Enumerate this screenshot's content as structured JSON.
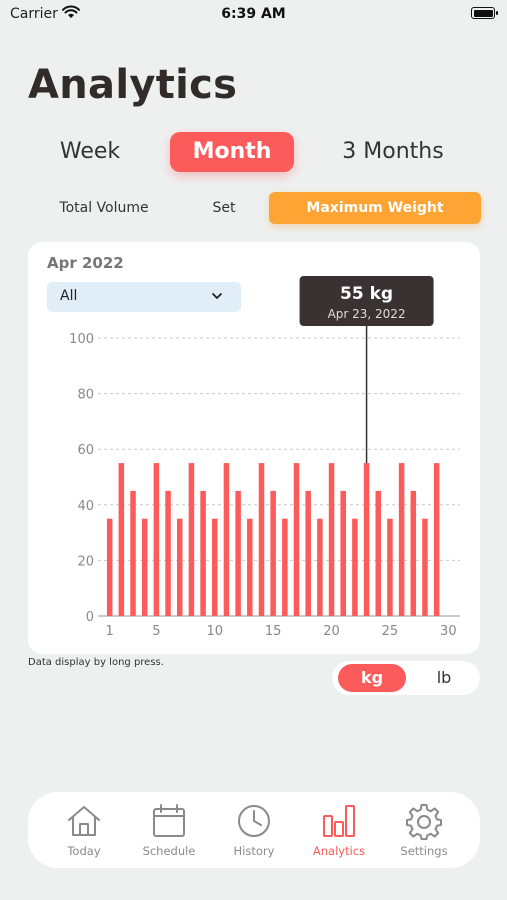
{
  "status_bar": {
    "carrier": "Carrier",
    "time": "6:39 AM"
  },
  "page": {
    "title": "Analytics"
  },
  "period_tabs": {
    "week": "Week",
    "month": "Month",
    "three_months": "3 Months",
    "selected": "Month"
  },
  "metric_tabs": {
    "total_volume": "Total Volume",
    "set": "Set",
    "maximum_weight": "Maximum Weight",
    "selected": "Maximum Weight"
  },
  "card": {
    "month_label": "Apr 2022",
    "filter": {
      "value": "All"
    }
  },
  "tooltip": {
    "value": "55 kg",
    "date": "Apr 23, 2022",
    "day": 23
  },
  "chart_data": {
    "type": "bar",
    "title": "",
    "xlabel": "",
    "ylabel": "",
    "ylim": [
      0,
      100
    ],
    "yticks": [
      0,
      20,
      40,
      60,
      80,
      100
    ],
    "xlim": [
      0,
      31
    ],
    "xticks": [
      1,
      5,
      10,
      15,
      20,
      25,
      30
    ],
    "grid": true,
    "x": [
      1,
      2,
      3,
      4,
      5,
      6,
      7,
      8,
      9,
      10,
      11,
      12,
      13,
      14,
      15,
      16,
      17,
      18,
      19,
      20,
      21,
      22,
      23,
      24,
      25,
      26,
      27,
      28,
      29
    ],
    "values": [
      35,
      55,
      45,
      35,
      55,
      45,
      35,
      55,
      45,
      35,
      55,
      45,
      35,
      55,
      45,
      35,
      55,
      45,
      35,
      55,
      45,
      35,
      55,
      45,
      35,
      55,
      45,
      35,
      55
    ],
    "bar_color": "#fb5b5a"
  },
  "hint": "Data display by long press.",
  "units": {
    "kg": "kg",
    "lb": "lb",
    "selected": "kg"
  },
  "tab_bar": {
    "today": "Today",
    "schedule": "Schedule",
    "history": "History",
    "analytics": "Analytics",
    "settings": "Settings",
    "active": "Analytics"
  },
  "colors": {
    "accent": "#fb5b5a",
    "orange": "#fda434",
    "tooltip_bg": "#3a3232",
    "background": "#eef0f0"
  },
  "icons": [
    "wifi-icon",
    "battery-icon",
    "chevron-down-icon",
    "home-icon",
    "calendar-icon",
    "clock-icon",
    "bar-chart-icon",
    "gear-icon"
  ]
}
